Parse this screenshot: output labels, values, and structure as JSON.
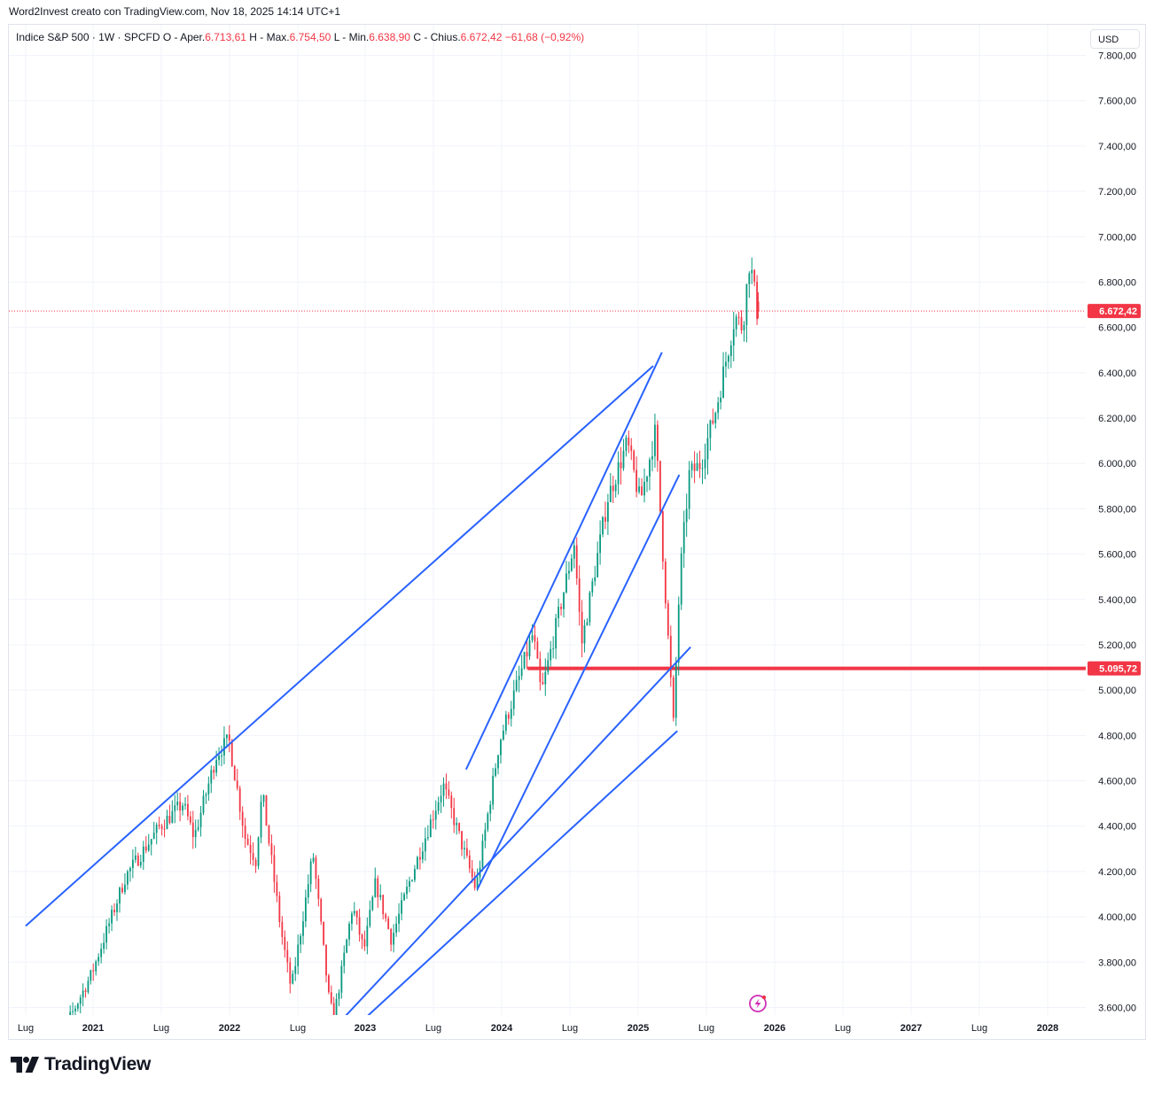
{
  "header": {
    "text": "Word2Invest creato con TradingView.com, Nov 18, 2025 14:14 UTC+1"
  },
  "legend": {
    "symbol": "Indice S&P 500 · 1W · SPCFD",
    "o_label": "O - Aper.",
    "o_value": "6.713,61",
    "h_label": "H - Max.",
    "h_value": "6.754,50",
    "l_label": "L - Min.",
    "l_value": "6.638,90",
    "c_label": "C - Chius.",
    "c_value": "6.672,42",
    "change": "−61,68 (−0,92%)"
  },
  "currency_button": "USD",
  "brand": {
    "name": "TradingView"
  },
  "colors": {
    "up": "#089981",
    "down": "#f23645",
    "trendline": "#2962ff",
    "level": "#f23645",
    "grid": "#f0f3fa"
  },
  "chart_data": {
    "type": "candlestick",
    "symbol": "Indice S&P 500",
    "interval": "1W",
    "x_ticks": [
      "Lug",
      "2021",
      "Lug",
      "2022",
      "Lug",
      "2023",
      "Lug",
      "2024",
      "Lug",
      "2025",
      "Lug",
      "2026",
      "Lug",
      "2027",
      "Lug",
      "2028"
    ],
    "x_tick_dates": [
      "2020-07",
      "2021-01",
      "2021-07",
      "2022-01",
      "2022-07",
      "2023-01",
      "2023-07",
      "2024-01",
      "2024-07",
      "2025-01",
      "2025-07",
      "2026-01",
      "2026-07",
      "2027-01",
      "2027-07",
      "2028-01"
    ],
    "y_ticks": [
      3600,
      3800,
      4000,
      4200,
      4400,
      4600,
      4800,
      5000,
      5200,
      5400,
      5600,
      5800,
      6000,
      6200,
      6400,
      6600,
      6800,
      7000,
      7200,
      7400,
      7600,
      7800
    ],
    "y_tick_labels": [
      "3.600,00",
      "3.800,00",
      "4.000,00",
      "4.200,00",
      "4.400,00",
      "4.600,00",
      "4.800,00",
      "5.000,00",
      "5.200,00",
      "5.400,00",
      "5.600,00",
      "5.800,00",
      "6.000,00",
      "6.200,00",
      "6.400,00",
      "6.600,00",
      "6.800,00",
      "7.000,00",
      "7.200,00",
      "7.400,00",
      "7.600,00",
      "7.800,00"
    ],
    "ylim": [
      3550,
      7830
    ],
    "price_path": [
      [
        "2020-09-01",
        3330
      ],
      [
        "2020-11-01",
        3550
      ],
      [
        "2021-01-01",
        3750
      ],
      [
        "2021-04-01",
        4180
      ],
      [
        "2021-07-01",
        4400
      ],
      [
        "2021-09-01",
        4500
      ],
      [
        "2021-10-01",
        4350
      ],
      [
        "2021-12-01",
        4720
      ],
      [
        "2022-01-03",
        4780
      ],
      [
        "2022-02-15",
        4350
      ],
      [
        "2022-03-15",
        4250
      ],
      [
        "2022-04-01",
        4550
      ],
      [
        "2022-05-20",
        3950
      ],
      [
        "2022-06-17",
        3680
      ],
      [
        "2022-08-15",
        4280
      ],
      [
        "2022-09-30",
        3600
      ],
      [
        "2022-10-14",
        3580
      ],
      [
        "2022-12-01",
        4050
      ],
      [
        "2023-01-01",
        3850
      ],
      [
        "2023-02-01",
        4150
      ],
      [
        "2023-03-15",
        3900
      ],
      [
        "2023-05-01",
        4150
      ],
      [
        "2023-07-31",
        4580
      ],
      [
        "2023-10-27",
        4120
      ],
      [
        "2023-12-29",
        4770
      ],
      [
        "2024-03-28",
        5250
      ],
      [
        "2024-04-19",
        4980
      ],
      [
        "2024-07-16",
        5650
      ],
      [
        "2024-08-05",
        5200
      ],
      [
        "2024-10-15",
        5850
      ],
      [
        "2024-12-06",
        6090
      ],
      [
        "2025-01-10",
        5830
      ],
      [
        "2025-02-19",
        6140
      ],
      [
        "2025-03-13",
        5550
      ],
      [
        "2025-04-08",
        4850
      ],
      [
        "2025-04-25",
        5500
      ],
      [
        "2025-05-20",
        5950
      ],
      [
        "2025-06-20",
        6000
      ],
      [
        "2025-08-01",
        6250
      ],
      [
        "2025-09-19",
        6650
      ],
      [
        "2025-10-10",
        6600
      ],
      [
        "2025-10-29",
        6900
      ],
      [
        "2025-11-14",
        6720
      ],
      [
        "2025-11-18",
        6672.42
      ]
    ],
    "last_week": {
      "open": 6713.61,
      "high": 6754.5,
      "low": 6638.9,
      "close": 6672.42,
      "change": -61.68,
      "change_pct": -0.92
    },
    "trendlines": [
      {
        "from": [
          "2020-07-01",
          3960
        ],
        "to": [
          "2025-02-10",
          6430
        ]
      },
      {
        "from": [
          "2023-09-27",
          4650
        ],
        "to": [
          "2025-03-05",
          6490
        ]
      },
      {
        "from": [
          "2023-10-27",
          4120
        ],
        "to": [
          "2025-04-20",
          5950
        ]
      },
      {
        "from": [
          "2022-11-01",
          3550
        ],
        "to": [
          "2025-05-20",
          5190
        ]
      },
      {
        "from": [
          "2022-09-20",
          3400
        ],
        "to": [
          "2025-04-15",
          4820
        ]
      }
    ],
    "horizontal_level": {
      "value": 5095.72,
      "label": "5.095,72",
      "from_date": "2024-03-10"
    },
    "price_line": {
      "value": 6672.42,
      "label": "6.672,42"
    },
    "grid": true,
    "price_axis": "right",
    "currency": "USD"
  }
}
